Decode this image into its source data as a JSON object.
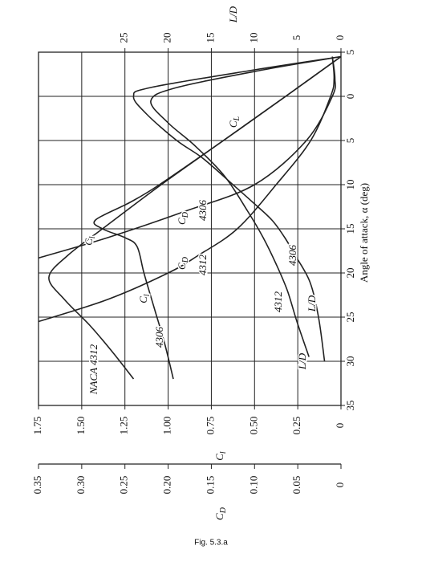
{
  "chart_data": {
    "type": "line",
    "caption": "Fig. 5.3.a",
    "x_label": "Angle of attack, α (deg)",
    "cl_label": {
      "text": "C",
      "sub": "l"
    },
    "cd_label": {
      "text": "C",
      "sub": "D"
    },
    "ld_label": "L/D",
    "xlim": [
      -5,
      35
    ],
    "xticks": [
      {
        "value": -5,
        "label": "5"
      },
      0,
      5,
      10,
      15,
      20,
      25,
      30,
      35
    ],
    "ylim": [
      0,
      1.75
    ],
    "yticks": [
      0,
      0.25,
      {
        "value": 0.5,
        "label": "0.50"
      },
      0.75,
      {
        "value": 1.0,
        "label": "1.00"
      },
      1.25,
      {
        "value": 1.5,
        "label": "1.50"
      },
      1.75
    ],
    "cdlim": [
      0,
      0.35
    ],
    "cdticks": [
      0,
      0.05,
      {
        "value": 0.1,
        "label": "0.10"
      },
      0.15,
      {
        "value": 0.2,
        "label": "0.20"
      },
      0.25,
      {
        "value": 0.3,
        "label": "0.30"
      },
      0.35
    ],
    "ldlim": [
      0,
      35
    ],
    "ldticks": [
      0,
      5,
      10,
      15,
      20,
      25
    ],
    "grid": true,
    "color": "#222222",
    "series": [
      {
        "axis": "cl",
        "x": [
          -4.5,
          0,
          5,
          10,
          12,
          14,
          15,
          16,
          17,
          20,
          24,
          28,
          32
        ],
        "values": [
          0,
          0.32,
          0.68,
          1.05,
          1.22,
          1.42,
          1.38,
          1.25,
          1.18,
          1.14,
          1.08,
          1.02,
          0.97
        ]
      },
      {
        "axis": "cl",
        "x": [
          -4.5,
          0,
          5,
          10,
          15,
          18,
          20.5,
          23,
          26,
          29,
          32
        ],
        "values": [
          0,
          0.32,
          0.68,
          1.04,
          1.38,
          1.58,
          1.69,
          1.6,
          1.45,
          1.32,
          1.2
        ]
      },
      {
        "axis": "cd",
        "x": [
          -4.5,
          -2,
          0,
          5,
          10,
          13,
          16,
          18.3
        ],
        "values": [
          0.01,
          0.007,
          0.01,
          0.04,
          0.1,
          0.18,
          0.27,
          0.35
        ]
      },
      {
        "axis": "cd",
        "x": [
          -4.5,
          -2,
          0,
          5,
          10,
          15,
          18,
          20,
          23,
          25.5
        ],
        "values": [
          0.01,
          0.008,
          0.012,
          0.035,
          0.075,
          0.12,
          0.165,
          0.2,
          0.27,
          0.35
        ]
      },
      {
        "axis": "ld",
        "x": [
          -4.5,
          -3,
          -1,
          0,
          2,
          5,
          7,
          10,
          12,
          14,
          16,
          18,
          21,
          25,
          30
        ],
        "values": [
          0,
          10,
          22,
          24,
          22.5,
          19,
          16,
          12.5,
          10.2,
          8,
          6.5,
          5.3,
          3.6,
          2.6,
          1.9
        ]
      },
      {
        "axis": "ld",
        "x": [
          -4.5,
          -3,
          -1,
          0.5,
          3,
          5.5,
          9,
          13,
          16,
          19,
          22,
          25.5,
          29.5
        ],
        "values": [
          0,
          9,
          19,
          22,
          20,
          17,
          13.5,
          10.8,
          9,
          7.5,
          6.2,
          5.1,
          3.7
        ]
      }
    ],
    "annotations": [
      {
        "text": "C",
        "sub": "l"
      },
      {
        "text": "C",
        "sub": "D"
      },
      {
        "text": "4306"
      },
      {
        "text": "C",
        "sub": "L"
      },
      {
        "text": "C",
        "sub": "l"
      },
      {
        "text": "C",
        "sub": "D"
      },
      {
        "text": "4312"
      },
      {
        "text": "4306"
      },
      {
        "text": "NACA 4312"
      },
      {
        "text": "4306"
      },
      {
        "text": "4312"
      },
      {
        "text": "L/D"
      },
      {
        "text": "L/D"
      }
    ]
  }
}
